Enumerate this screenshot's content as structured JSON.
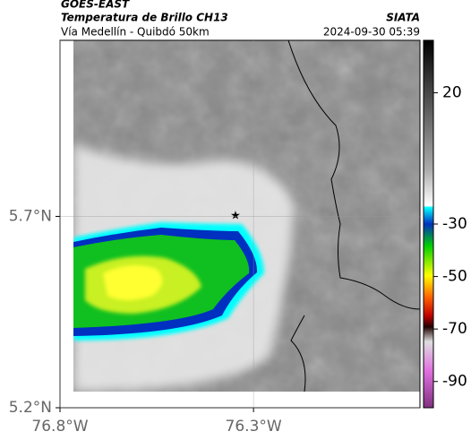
{
  "header": {
    "source": "GOES-EAST",
    "title": "Temperatura de Brillo CH13",
    "org": "SIATA",
    "subtitle": "Vía Medellín - Quibdó 50km",
    "datetime": "2024-09-30 05:39"
  },
  "chart_data": {
    "type": "map",
    "xlim": [
      -76.8,
      -75.87
    ],
    "xticks": [
      {
        "value": -76.8,
        "label": "76.8°W"
      },
      {
        "value": -76.3,
        "label": "76.3°W"
      }
    ],
    "ylim": [
      5.2,
      6.16
    ],
    "yticks": [
      {
        "value": 5.2,
        "label": "5.2°N"
      },
      {
        "value": 5.7,
        "label": "5.7°N"
      }
    ],
    "colorbar": {
      "lim": [
        -100,
        40
      ],
      "ticks": [
        20,
        -30,
        -50,
        -70,
        -90
      ]
    }
  }
}
